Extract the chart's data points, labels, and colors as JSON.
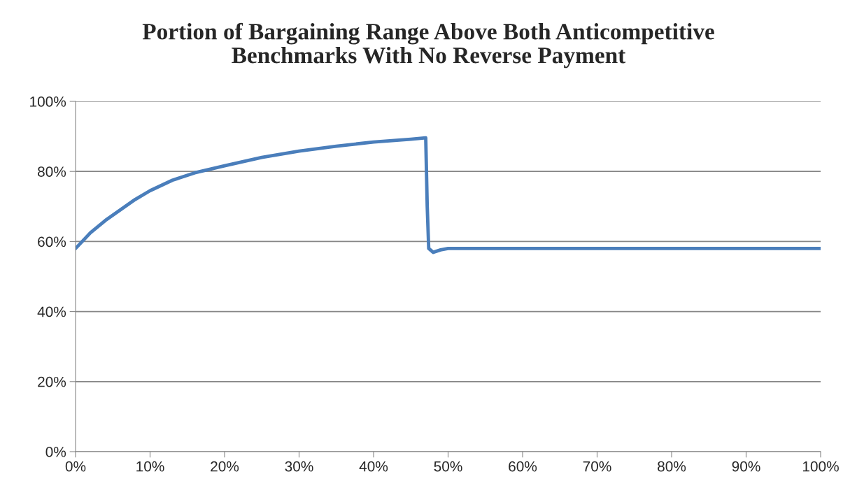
{
  "chart_data": {
    "type": "line",
    "title": "Portion of Bargaining Range Above Both Anticompetitive\nBenchmarks With No Reverse Payment",
    "x": [
      0,
      2,
      4,
      6,
      8,
      10,
      13,
      16,
      20,
      25,
      30,
      35,
      40,
      45,
      47,
      47.2,
      47.4,
      48,
      49,
      50,
      60,
      70,
      80,
      90,
      100
    ],
    "series": [
      {
        "color": "#4a7ebb",
        "values": [
          58,
          62.5,
          66,
          69,
          72,
          74.5,
          77.5,
          79.6,
          81.6,
          84,
          85.8,
          87.2,
          88.4,
          89.2,
          89.6,
          70,
          58,
          56.9,
          57.6,
          58,
          58,
          58,
          58,
          58,
          58
        ]
      }
    ],
    "xlim": [
      0,
      100
    ],
    "ylim": [
      0,
      100
    ],
    "xticks": [
      {
        "value": 0,
        "label": "0%"
      },
      {
        "value": 10,
        "label": "10%"
      },
      {
        "value": 20,
        "label": "20%"
      },
      {
        "value": 30,
        "label": "30%"
      },
      {
        "value": 40,
        "label": "40%"
      },
      {
        "value": 50,
        "label": "50%"
      },
      {
        "value": 60,
        "label": "60%"
      },
      {
        "value": 70,
        "label": "70%"
      },
      {
        "value": 80,
        "label": "80%"
      },
      {
        "value": 90,
        "label": "90%"
      },
      {
        "value": 100,
        "label": "100%"
      }
    ],
    "yticks": [
      {
        "value": 0,
        "label": "0%"
      },
      {
        "value": 20,
        "label": "20%"
      },
      {
        "value": 40,
        "label": "40%"
      },
      {
        "value": 60,
        "label": "60%"
      },
      {
        "value": 80,
        "label": "80%"
      },
      {
        "value": 100,
        "label": "100%"
      }
    ],
    "grid": "y",
    "legend": false,
    "marker": "none",
    "line_style": "solid"
  }
}
